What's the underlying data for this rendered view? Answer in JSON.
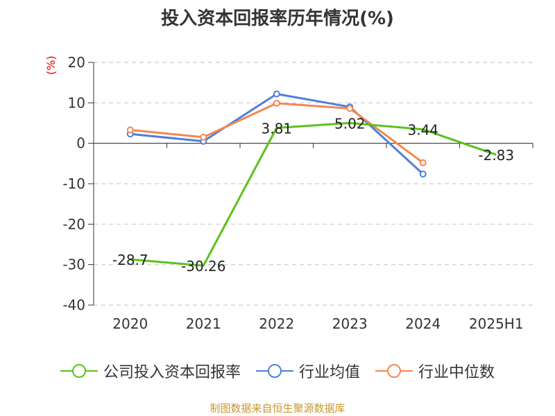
{
  "chart_data": {
    "type": "line",
    "title": "投入资本回报率历年情况(%)",
    "ylabel": "(%)",
    "categories": [
      "2020",
      "2021",
      "2022",
      "2023",
      "2024",
      "2025H1"
    ],
    "ylim": [
      -40,
      20
    ],
    "yticks": [
      20,
      10,
      0,
      -10,
      -20,
      -30,
      -40
    ],
    "grid": true,
    "legend_position": "bottom",
    "series": [
      {
        "name": "公司投入资本回报率",
        "color": "#5ac21a",
        "values": [
          -28.7,
          -30.26,
          3.81,
          5.02,
          3.44,
          -2.83
        ],
        "data_labels": [
          "-28.7",
          "-30.26",
          "3.81",
          "5.02",
          "3.44",
          "-2.83"
        ]
      },
      {
        "name": "行业均值",
        "color": "#4e7fdc",
        "values": [
          2.3,
          0.5,
          12.2,
          9.0,
          -7.6,
          null
        ]
      },
      {
        "name": "行业中位数",
        "color": "#f4874f",
        "values": [
          3.3,
          1.5,
          9.9,
          8.6,
          -4.8,
          null
        ]
      }
    ]
  },
  "footer": {
    "source": "制图数据来自恒生聚源数据库"
  }
}
